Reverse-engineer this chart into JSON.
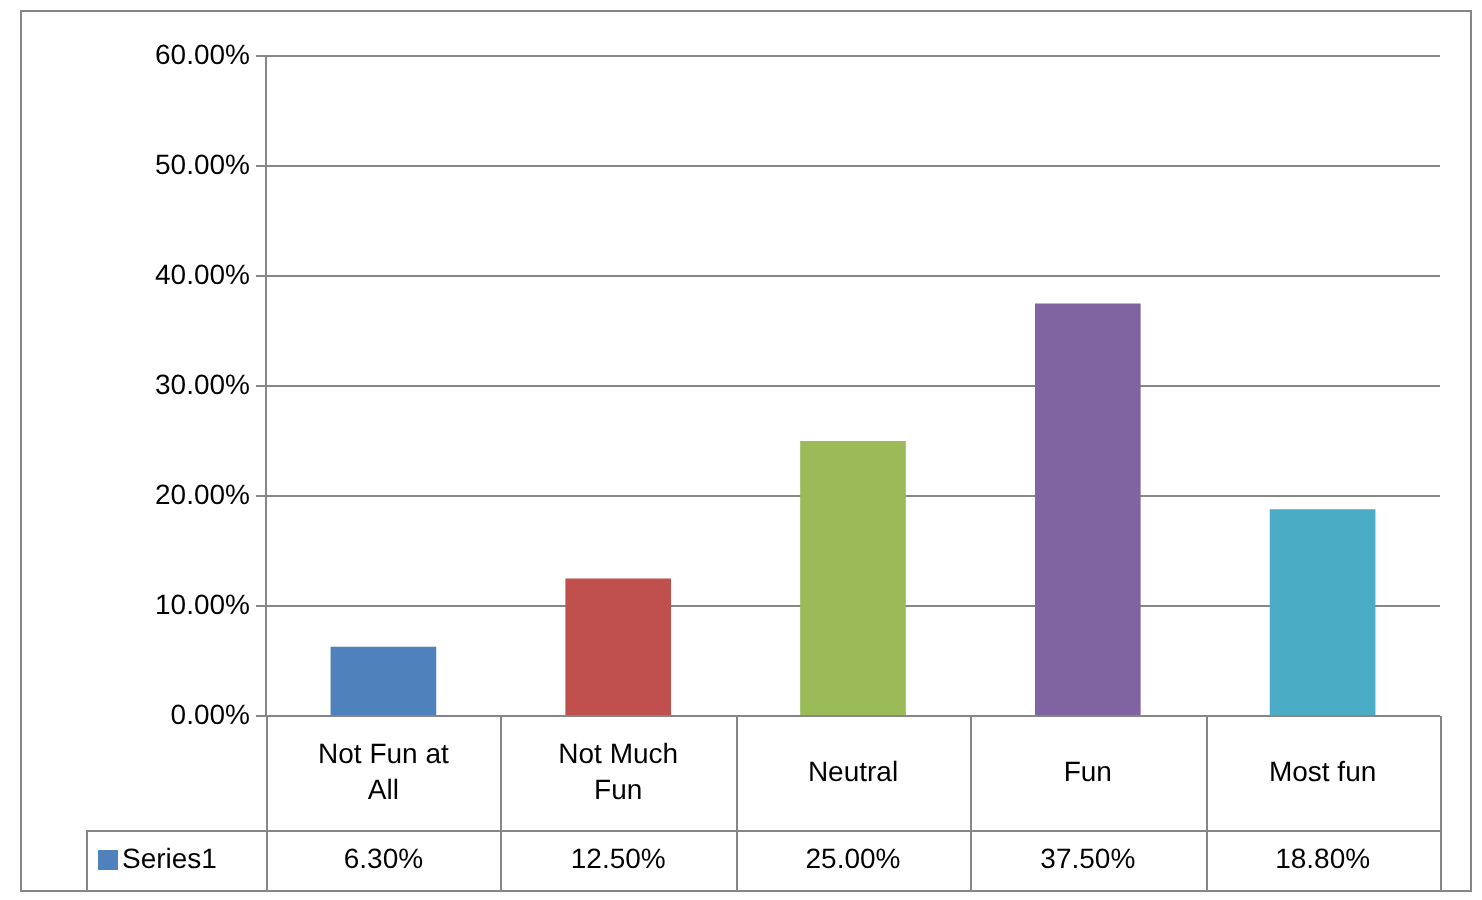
{
  "chart_data": {
    "type": "bar",
    "categories": [
      "Not Fun at All",
      "Not Much Fun",
      "Neutral",
      "Fun",
      "Most fun"
    ],
    "series": [
      {
        "name": "Series1",
        "color": "#4f81bd",
        "colors": [
          "#4f81bd",
          "#c0504d",
          "#9bbb59",
          "#8064a2",
          "#4bacc6"
        ],
        "values": [
          6.3,
          12.5,
          25.0,
          37.5,
          18.8
        ],
        "value_labels": [
          "6.30%",
          "12.50%",
          "25.00%",
          "37.50%",
          "18.80%"
        ]
      }
    ],
    "ylim": [
      0,
      60
    ],
    "yticks": [
      {
        "value": 0,
        "label": "0.00%"
      },
      {
        "value": 10,
        "label": "10.00%"
      },
      {
        "value": 20,
        "label": "20.00%"
      },
      {
        "value": 30,
        "label": "30.00%"
      },
      {
        "value": 40,
        "label": "40.00%"
      },
      {
        "value": 50,
        "label": "50.00%"
      },
      {
        "value": 60,
        "label": "60.00%"
      }
    ],
    "grid": "y",
    "legend": "bottom"
  }
}
